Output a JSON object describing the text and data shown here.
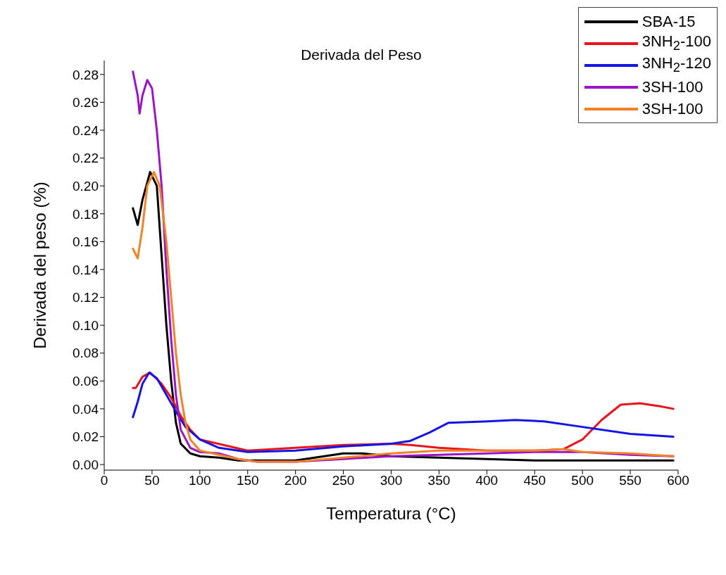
{
  "chart_data": {
    "type": "line",
    "title": "Derivada del Peso",
    "xlabel": "Temperatura (°C)",
    "ylabel": "Derivada del peso (%)",
    "xlim": [
      0,
      600
    ],
    "ylim": [
      -0.004,
      0.29
    ],
    "xticks": [
      0,
      50,
      100,
      150,
      200,
      250,
      300,
      350,
      400,
      450,
      500,
      550,
      600
    ],
    "yticks": [
      {
        "value": 0,
        "label": "0.00"
      },
      {
        "value": 0.02,
        "label": "0.02"
      },
      {
        "value": 0.04,
        "label": "0.04"
      },
      {
        "value": 0.06,
        "label": "0.06"
      },
      {
        "value": 0.08,
        "label": "0.08"
      },
      {
        "value": 0.1,
        "label": "0.10"
      },
      {
        "value": 0.12,
        "label": "0.12"
      },
      {
        "value": 0.14,
        "label": "0.14"
      },
      {
        "value": 0.16,
        "label": "0.16"
      },
      {
        "value": 0.18,
        "label": "0.18"
      },
      {
        "value": 0.2,
        "label": "0.20"
      },
      {
        "value": 0.22,
        "label": "0.22"
      },
      {
        "value": 0.24,
        "label": "0.24"
      },
      {
        "value": 0.26,
        "label": "0.26"
      },
      {
        "value": 0.28,
        "label": "0.28"
      }
    ],
    "grid": false,
    "legend": "top right",
    "marker": "none",
    "line_style": "solid",
    "series": [
      {
        "name": "SBA-15",
        "color": "#000000",
        "x": [
          30,
          35,
          40,
          48,
          55,
          60,
          65,
          70,
          75,
          80,
          90,
          100,
          120,
          140,
          200,
          230,
          250,
          270,
          300,
          350,
          400,
          450,
          500,
          550,
          595
        ],
        "values": [
          0.184,
          0.172,
          0.19,
          0.21,
          0.2,
          0.15,
          0.1,
          0.06,
          0.03,
          0.015,
          0.008,
          0.006,
          0.005,
          0.003,
          0.003,
          0.006,
          0.008,
          0.008,
          0.006,
          0.005,
          0.004,
          0.003,
          0.003,
          0.003,
          0.003
        ]
      },
      {
        "name": "3NH$_{2}$-100",
        "color": "#e8141c",
        "x": [
          30,
          33,
          40,
          48,
          60,
          70,
          80,
          90,
          100,
          150,
          200,
          250,
          300,
          320,
          350,
          400,
          450,
          480,
          500,
          520,
          540,
          560,
          580,
          595
        ],
        "values": [
          0.055,
          0.055,
          0.063,
          0.066,
          0.058,
          0.048,
          0.035,
          0.025,
          0.018,
          0.01,
          0.012,
          0.014,
          0.015,
          0.014,
          0.012,
          0.01,
          0.01,
          0.011,
          0.018,
          0.032,
          0.043,
          0.044,
          0.042,
          0.04
        ]
      },
      {
        "name": "3NH$_{2}$-120",
        "color": "#1414e6",
        "x": [
          30,
          35,
          40,
          47,
          55,
          65,
          75,
          85,
          100,
          120,
          150,
          200,
          250,
          300,
          320,
          340,
          360,
          400,
          430,
          460,
          500,
          550,
          595
        ],
        "values": [
          0.034,
          0.045,
          0.058,
          0.066,
          0.062,
          0.05,
          0.038,
          0.027,
          0.018,
          0.012,
          0.009,
          0.01,
          0.013,
          0.015,
          0.017,
          0.023,
          0.03,
          0.031,
          0.032,
          0.031,
          0.027,
          0.022,
          0.02
        ]
      },
      {
        "name": "3SH-100",
        "color": "#9a14c8",
        "x": [
          30,
          35,
          37,
          40,
          45,
          50,
          55,
          60,
          65,
          70,
          75,
          80,
          90,
          100,
          120,
          140,
          160,
          200,
          250,
          300,
          350,
          400,
          450,
          500,
          550,
          595
        ],
        "values": [
          0.282,
          0.265,
          0.252,
          0.265,
          0.276,
          0.27,
          0.24,
          0.2,
          0.14,
          0.09,
          0.05,
          0.025,
          0.012,
          0.009,
          0.008,
          0.004,
          0.002,
          0.002,
          0.004,
          0.006,
          0.007,
          0.008,
          0.009,
          0.009,
          0.007,
          0.006
        ]
      },
      {
        "name": "3SH-100",
        "color": "#f08228",
        "x": [
          30,
          35,
          40,
          45,
          52,
          58,
          65,
          70,
          75,
          80,
          85,
          90,
          100,
          120,
          140,
          160,
          200,
          250,
          300,
          350,
          400,
          450,
          480,
          500,
          550,
          595
        ],
        "values": [
          0.155,
          0.148,
          0.17,
          0.2,
          0.21,
          0.2,
          0.16,
          0.12,
          0.08,
          0.05,
          0.03,
          0.018,
          0.01,
          0.007,
          0.004,
          0.002,
          0.002,
          0.005,
          0.008,
          0.01,
          0.01,
          0.01,
          0.011,
          0.009,
          0.008,
          0.006
        ]
      }
    ]
  }
}
